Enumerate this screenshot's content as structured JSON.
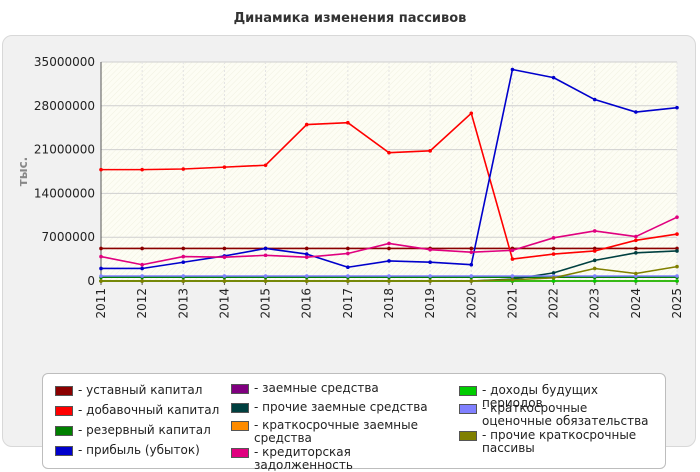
{
  "title": "Динамика изменения пассивов",
  "chart_data": {
    "type": "line",
    "title": "Динамика изменения пассивов",
    "ylabel": "тыс.",
    "xlabel": "",
    "ylim": [
      0,
      35000000
    ],
    "yticks": [
      "0",
      "7000000",
      "14000000",
      "21000000",
      "28000000",
      "35000000"
    ],
    "categories": [
      "2011",
      "2012",
      "2013",
      "2014",
      "2015",
      "2016",
      "2017",
      "2018",
      "2019",
      "2020",
      "2021",
      "2022",
      "2023",
      "2024",
      "2025"
    ],
    "legend_position": "bottom",
    "grid": true,
    "series": [
      {
        "name": "- уставный капитал",
        "color": "#8b0000",
        "values": [
          5200000,
          5200000,
          5200000,
          5200000,
          5200000,
          5200000,
          5200000,
          5200000,
          5200000,
          5200000,
          5200000,
          5200000,
          5200000,
          5200000,
          5200000
        ]
      },
      {
        "name": "- добавочный капитал",
        "color": "#ff0000",
        "values": [
          17800000,
          17800000,
          17900000,
          18200000,
          18500000,
          25000000,
          25300000,
          20500000,
          20800000,
          26800000,
          3500000,
          4300000,
          4800000,
          6500000,
          7500000
        ]
      },
      {
        "name": "- резервный капитал",
        "color": "#008000",
        "values": [
          600000,
          600000,
          600000,
          600000,
          600000,
          600000,
          600000,
          600000,
          600000,
          600000,
          600000,
          600000,
          600000,
          600000,
          600000
        ]
      },
      {
        "name": "- прибыль (убыток)",
        "color": "#0000cc",
        "values": [
          2000000,
          2000000,
          3000000,
          4000000,
          5200000,
          4300000,
          2200000,
          3200000,
          3000000,
          2600000,
          33800000,
          32500000,
          29000000,
          27000000,
          27700000
        ]
      },
      {
        "name": "- заемные средства",
        "color": "#800080",
        "values": [
          0,
          0,
          0,
          0,
          0,
          0,
          0,
          0,
          0,
          0,
          0,
          0,
          0,
          0,
          0
        ]
      },
      {
        "name": "- прочие заемные средства",
        "color": "#004040",
        "values": [
          0,
          0,
          0,
          0,
          0,
          0,
          0,
          0,
          0,
          0,
          300000,
          1300000,
          3300000,
          4500000,
          4800000
        ]
      },
      {
        "name": "- краткосрочные заемные средства",
        "color": "#ff8c00",
        "values": [
          0,
          0,
          0,
          0,
          0,
          0,
          0,
          0,
          0,
          0,
          0,
          0,
          0,
          0,
          0
        ]
      },
      {
        "name": "- кредиторская задолженность",
        "color": "#e0007f",
        "values": [
          3900000,
          2600000,
          3900000,
          3800000,
          4100000,
          3800000,
          4400000,
          6000000,
          5000000,
          4600000,
          4900000,
          6900000,
          8000000,
          7100000,
          10200000
        ]
      },
      {
        "name": "- доходы будущих периодов",
        "color": "#00cc00",
        "values": [
          0,
          0,
          0,
          0,
          0,
          0,
          0,
          0,
          0,
          0,
          0,
          0,
          0,
          0,
          0
        ]
      },
      {
        "name": "- краткосрочные оценочные обязательства",
        "color": "#8080ff",
        "values": [
          800000,
          800000,
          800000,
          800000,
          800000,
          800000,
          800000,
          800000,
          800000,
          800000,
          800000,
          800000,
          800000,
          800000,
          800000
        ]
      },
      {
        "name": "- прочие краткосрочные пассивы",
        "color": "#808000",
        "values": [
          0,
          0,
          0,
          0,
          0,
          0,
          0,
          0,
          0,
          0,
          200000,
          500000,
          2000000,
          1200000,
          2300000
        ]
      }
    ]
  },
  "legend": {
    "columns": [
      [
        0,
        1,
        2,
        3
      ],
      [
        4,
        5,
        6,
        7
      ],
      [
        8,
        9,
        10
      ]
    ]
  }
}
